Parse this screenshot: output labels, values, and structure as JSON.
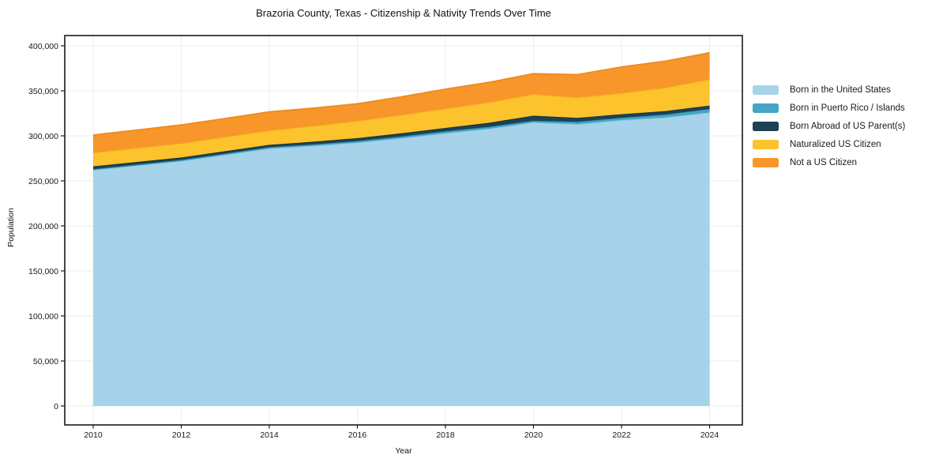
{
  "chart_data": {
    "type": "area",
    "stacked": true,
    "title": "Brazoria County, Texas - Citizenship & Nativity Trends Over Time",
    "xlabel": "Year",
    "ylabel": "Population",
    "x": [
      2010,
      2011,
      2012,
      2013,
      2014,
      2015,
      2016,
      2017,
      2018,
      2019,
      2020,
      2021,
      2022,
      2023,
      2024
    ],
    "series": [
      {
        "name": "Born in the United States",
        "color": "#a6d3e9",
        "edge_color": "#8fc4de",
        "values": [
          262000,
          267000,
          272000,
          279000,
          286000,
          289000,
          292500,
          297500,
          303000,
          308000,
          315000,
          313000,
          317500,
          320500,
          326000
        ]
      },
      {
        "name": "Born in Puerto Rico / Islands",
        "color": "#44a6c6",
        "edge_color": "#2d95b8",
        "values": [
          1000,
          1100,
          1200,
          1300,
          1400,
          1500,
          1700,
          1800,
          2000,
          2100,
          1800,
          2600,
          2600,
          3200,
          3800
        ]
      },
      {
        "name": "Born Abroad of US Parent(s)",
        "color": "#1d4254",
        "edge_color": "#142f3c",
        "values": [
          3100,
          2900,
          2800,
          2700,
          2600,
          3000,
          3300,
          3500,
          3800,
          4500,
          5600,
          4400,
          3900,
          3800,
          3800
        ]
      },
      {
        "name": "Naturalized US Citizen",
        "color": "#fcc32d",
        "edge_color": "#f2b31c",
        "values": [
          15300,
          15500,
          15700,
          15800,
          15900,
          17500,
          19100,
          20500,
          21500,
          22700,
          23900,
          22600,
          23500,
          26000,
          29200
        ]
      },
      {
        "name": "Not a US Citizen",
        "color": "#f8962b",
        "edge_color": "#ee8a1d",
        "values": [
          19500,
          20000,
          20400,
          20500,
          20700,
          19800,
          19000,
          20000,
          21500,
          22200,
          22800,
          25400,
          29000,
          29500,
          29500
        ]
      }
    ],
    "xticks": [
      2010,
      2012,
      2014,
      2016,
      2018,
      2020,
      2022,
      2024
    ],
    "yticks": [
      0,
      50000,
      100000,
      150000,
      200000,
      250000,
      300000,
      350000,
      400000
    ],
    "ylim": [
      0,
      400000
    ],
    "grid": true,
    "legend_position": "right"
  }
}
